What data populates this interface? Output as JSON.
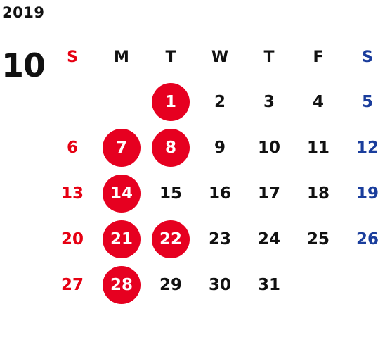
{
  "year": "2019",
  "month": "10",
  "colors": {
    "sunday": "#e60012",
    "saturday": "#1a3d9c",
    "highlight_bg": "#e60020",
    "text": "#111111"
  },
  "weekdays": [
    "S",
    "M",
    "T",
    "W",
    "T",
    "F",
    "S"
  ],
  "weeks": [
    [
      {
        "day": "",
        "kind": "empty",
        "highlighted": false
      },
      {
        "day": "",
        "kind": "empty",
        "highlighted": false
      },
      {
        "day": "1",
        "kind": "weekday",
        "highlighted": true
      },
      {
        "day": "2",
        "kind": "weekday",
        "highlighted": false
      },
      {
        "day": "3",
        "kind": "weekday",
        "highlighted": false
      },
      {
        "day": "4",
        "kind": "weekday",
        "highlighted": false
      },
      {
        "day": "5",
        "kind": "saturday",
        "highlighted": false
      }
    ],
    [
      {
        "day": "6",
        "kind": "sunday",
        "highlighted": false
      },
      {
        "day": "7",
        "kind": "weekday",
        "highlighted": true
      },
      {
        "day": "8",
        "kind": "weekday",
        "highlighted": true
      },
      {
        "day": "9",
        "kind": "weekday",
        "highlighted": false
      },
      {
        "day": "10",
        "kind": "weekday",
        "highlighted": false
      },
      {
        "day": "11",
        "kind": "weekday",
        "highlighted": false
      },
      {
        "day": "12",
        "kind": "saturday",
        "highlighted": false
      }
    ],
    [
      {
        "day": "13",
        "kind": "sunday",
        "highlighted": false
      },
      {
        "day": "14",
        "kind": "weekday",
        "highlighted": true
      },
      {
        "day": "15",
        "kind": "weekday",
        "highlighted": false
      },
      {
        "day": "16",
        "kind": "weekday",
        "highlighted": false
      },
      {
        "day": "17",
        "kind": "weekday",
        "highlighted": false
      },
      {
        "day": "18",
        "kind": "weekday",
        "highlighted": false
      },
      {
        "day": "19",
        "kind": "saturday",
        "highlighted": false
      }
    ],
    [
      {
        "day": "20",
        "kind": "sunday",
        "highlighted": false
      },
      {
        "day": "21",
        "kind": "weekday",
        "highlighted": true
      },
      {
        "day": "22",
        "kind": "weekday",
        "highlighted": true
      },
      {
        "day": "23",
        "kind": "weekday",
        "highlighted": false
      },
      {
        "day": "24",
        "kind": "weekday",
        "highlighted": false
      },
      {
        "day": "25",
        "kind": "weekday",
        "highlighted": false
      },
      {
        "day": "26",
        "kind": "saturday",
        "highlighted": false
      }
    ],
    [
      {
        "day": "27",
        "kind": "sunday",
        "highlighted": false
      },
      {
        "day": "28",
        "kind": "weekday",
        "highlighted": true
      },
      {
        "day": "29",
        "kind": "weekday",
        "highlighted": false
      },
      {
        "day": "30",
        "kind": "weekday",
        "highlighted": false
      },
      {
        "day": "31",
        "kind": "weekday",
        "highlighted": false
      },
      {
        "day": "",
        "kind": "empty",
        "highlighted": false
      },
      {
        "day": "",
        "kind": "empty",
        "highlighted": false
      }
    ]
  ]
}
